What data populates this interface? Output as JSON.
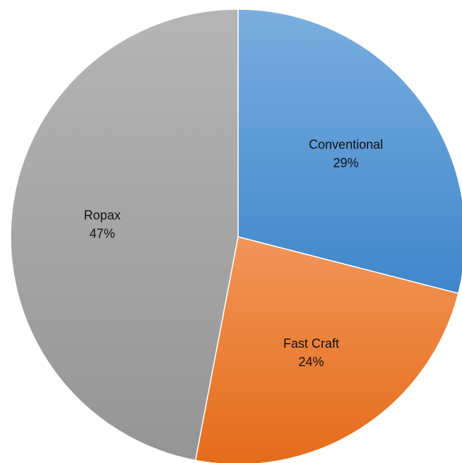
{
  "chart_data": {
    "type": "pie",
    "start_angle_deg": 0,
    "direction": "clockwise",
    "slices": [
      {
        "label": "Conventional",
        "value": 29,
        "value_label": "29%",
        "color": "#5B9BD5",
        "color_light": "#7AAEDF",
        "color_dark": "#3F86CB"
      },
      {
        "label": "Fast Craft",
        "value": 24,
        "value_label": "24%",
        "color": "#ED7D31",
        "color_light": "#F29559",
        "color_dark": "#E46C1A"
      },
      {
        "label": "Ropax",
        "value": 47,
        "value_label": "47%",
        "color": "#A5A5A5",
        "color_light": "#B5B5B5",
        "color_dark": "#959595"
      }
    ],
    "legend": "none",
    "title": ""
  }
}
